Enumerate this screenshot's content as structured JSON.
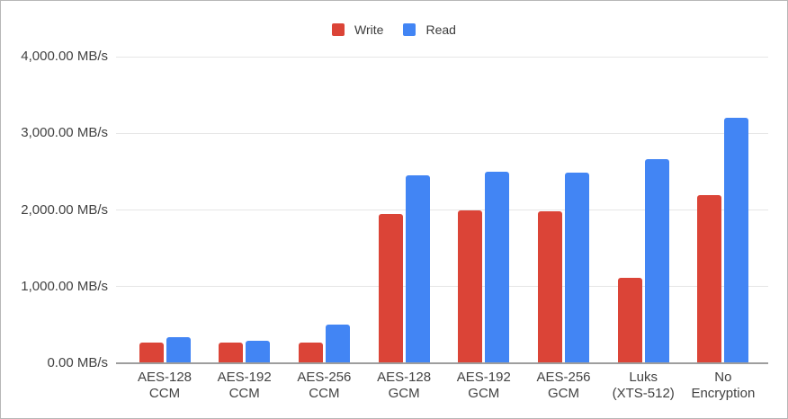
{
  "chart_data": {
    "type": "bar",
    "title": "",
    "unit": "MB/s",
    "categories": [
      "AES-128\nCCM",
      "AES-192\nCCM",
      "AES-256\nCCM",
      "AES-128\nGCM",
      "AES-192\nGCM",
      "AES-256\nGCM",
      "Luks\n(XTS-512)",
      "No\nEncryption"
    ],
    "series": [
      {
        "name": "Write",
        "color": "#DB4437",
        "values": [
          270,
          265,
          265,
          1950,
          1990,
          1985,
          1115,
          2195
        ]
      },
      {
        "name": "Read",
        "color": "#4285F4",
        "values": [
          340,
          295,
          505,
          2455,
          2500,
          2490,
          2660,
          3200
        ]
      }
    ],
    "y_ticks": [
      {
        "value": 0,
        "label": "0.00 MB/s"
      },
      {
        "value": 1000,
        "label": "1,000.00 MB/s"
      },
      {
        "value": 2000,
        "label": "2,000.00 MB/s"
      },
      {
        "value": 3000,
        "label": "3,000.00 MB/s"
      },
      {
        "value": 4000,
        "label": "4,000.00 MB/s"
      }
    ],
    "ylim": [
      0,
      4000
    ],
    "grid": true,
    "legend_position": "top"
  },
  "colors": {
    "gridline": "#e6e6e6",
    "axis_line": "#9e9e9e",
    "axis_text": "#424242",
    "legend_text": "#3c3c3c",
    "border": "#b7b7b7",
    "background": "#ffffff"
  }
}
